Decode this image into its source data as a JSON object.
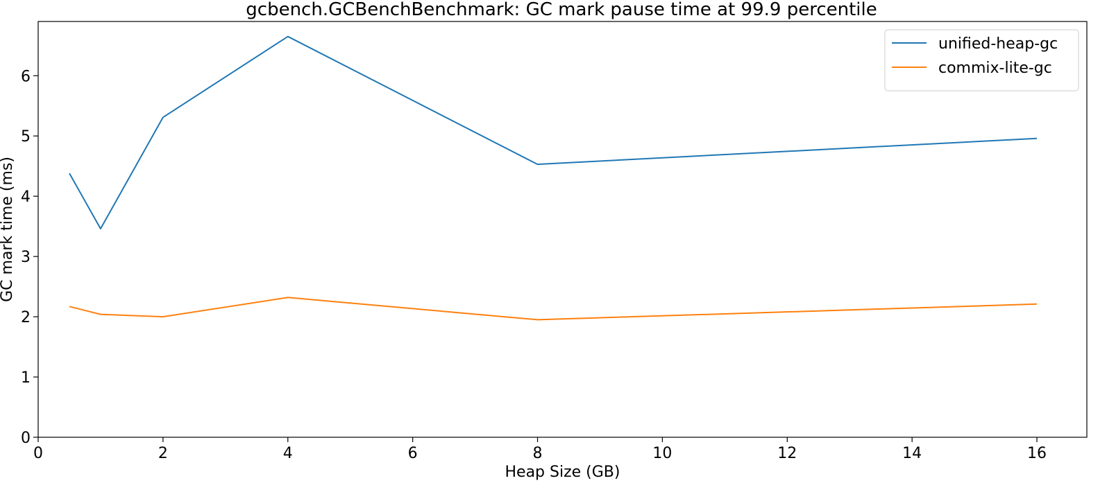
{
  "chart_data": {
    "type": "line",
    "title": "gcbench.GCBenchBenchmark: GC mark pause time at 99.9 percentile",
    "xlabel": "Heap Size (GB)",
    "ylabel": "GC mark time (ms)",
    "xlim": [
      0,
      16.8
    ],
    "ylim": [
      0,
      6.9
    ],
    "xticks": [
      0,
      2,
      4,
      6,
      8,
      10,
      12,
      14,
      16
    ],
    "yticks": [
      0,
      1,
      2,
      3,
      4,
      5,
      6
    ],
    "grid": false,
    "legend_position": "top-right",
    "x": [
      0.5,
      1,
      2,
      4,
      8,
      16
    ],
    "series": [
      {
        "name": "unified-heap-gc",
        "color": "#1f77b4",
        "values": [
          4.38,
          3.46,
          5.31,
          6.65,
          4.53,
          4.96
        ]
      },
      {
        "name": "commix-lite-gc",
        "color": "#ff7f0e",
        "values": [
          2.17,
          2.04,
          2.0,
          2.32,
          1.95,
          2.21
        ]
      }
    ]
  }
}
